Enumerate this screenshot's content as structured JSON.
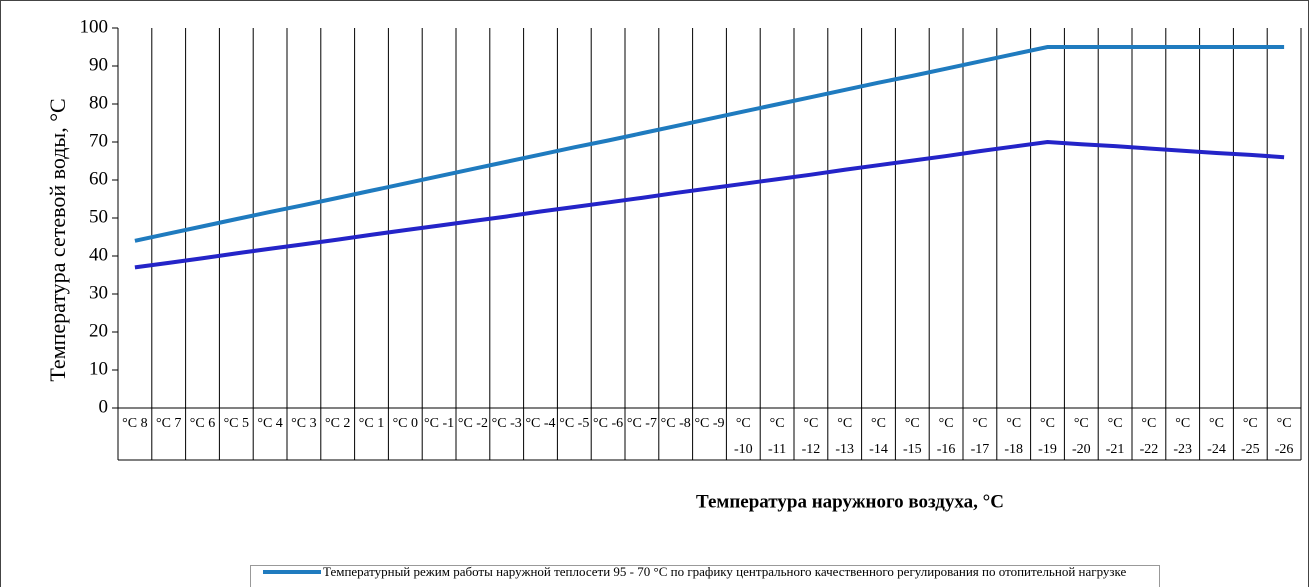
{
  "chart_data": {
    "type": "line",
    "xlabel": "Температура наружного воздуха, °C",
    "ylabel": "Температура сетевой воды, °C",
    "categories": [
      "°C 8",
      "°C 7",
      "°C 6",
      "°C 5",
      "°C 4",
      "°C 3",
      "°C 2",
      "°C 1",
      "°C 0",
      "°C -1",
      "°C -2",
      "°C -3",
      "°C -4",
      "°C -5",
      "°C -6",
      "°C -7",
      "°C -8",
      "°C -9",
      "°C -10",
      "°C -11",
      "°C -12",
      "°C -13",
      "°C -14",
      "°C -15",
      "°C -16",
      "°C -17",
      "°C -18",
      "°C -19",
      "°C -20",
      "°C -21",
      "°C -22",
      "°C -23",
      "°C -24",
      "°C -25",
      "°C -26"
    ],
    "series": [
      {
        "name": "Температурный режим работы наружной теплосети 95 - 70 °C по графику центрального качественного регулирования по отопительной нагрузке",
        "color": "#1f7bbf",
        "values": [
          44,
          45.9,
          47.8,
          49.7,
          51.6,
          53.4,
          55.3,
          57.2,
          59.1,
          61,
          62.9,
          64.8,
          66.7,
          68.6,
          70.4,
          72.3,
          74.2,
          76.1,
          78,
          79.9,
          81.8,
          83.7,
          85.6,
          87.4,
          89.3,
          91.2,
          93.1,
          95,
          95,
          95,
          95,
          95,
          95,
          95,
          95
        ]
      },
      {
        "color": "#2424c8",
        "values": [
          37,
          38.2,
          39.4,
          40.7,
          41.9,
          43.1,
          44.3,
          45.6,
          46.8,
          48,
          49.2,
          50.4,
          51.7,
          52.9,
          54.1,
          55.3,
          56.6,
          57.8,
          59,
          60.2,
          61.4,
          62.7,
          63.9,
          65.1,
          66.3,
          67.6,
          68.8,
          70,
          69.4,
          68.9,
          68.3,
          67.7,
          67.1,
          66.6,
          66
        ]
      }
    ],
    "ylim": [
      0,
      100
    ],
    "yticks": [
      0,
      10,
      20,
      30,
      40,
      50,
      60,
      70,
      80,
      90,
      100
    ],
    "legend": "bottom"
  }
}
